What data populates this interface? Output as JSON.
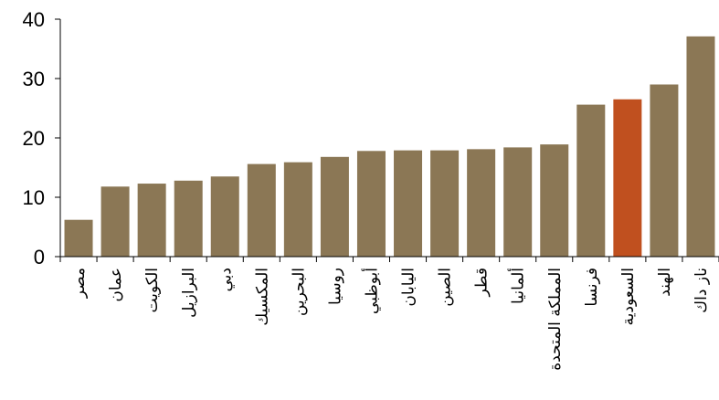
{
  "chart_data": {
    "type": "bar",
    "title": "",
    "xlabel": "",
    "ylabel": "",
    "ylim": [
      0,
      40
    ],
    "yticks": [
      0,
      10,
      20,
      30,
      40
    ],
    "grid": false,
    "categories": [
      "مصر",
      "عمان",
      "الكويت",
      "البرازيل",
      "دبي",
      "المكسيك",
      "البحرين",
      "روسيا",
      "أبوظبي",
      "اليابان",
      "الصين",
      "قطر",
      "ألمانيا",
      "المملكة المتحدة",
      "فرنسا",
      "السعودية",
      "الهند",
      "ناز داك"
    ],
    "values": [
      6.2,
      11.8,
      12.3,
      12.8,
      13.5,
      15.6,
      15.9,
      16.8,
      17.8,
      17.9,
      17.9,
      18.1,
      18.4,
      18.9,
      25.6,
      26.5,
      29.0,
      37.1
    ],
    "colors": {
      "default": "#8b7755",
      "highlight": "#c0501f"
    },
    "highlight_category": "السعودية"
  }
}
